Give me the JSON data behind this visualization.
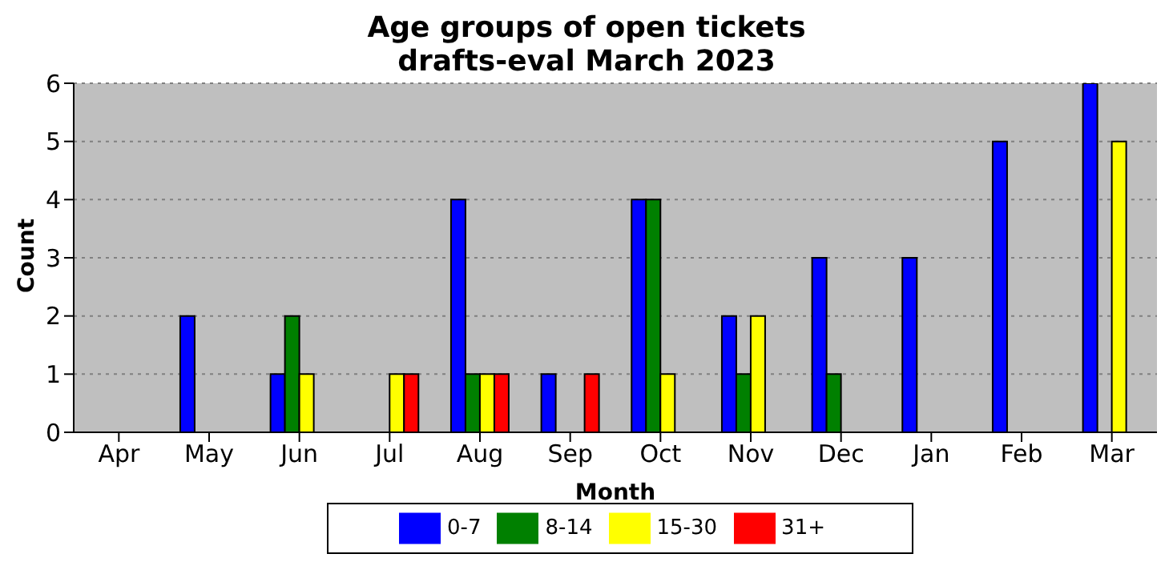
{
  "chart_data": {
    "type": "bar",
    "title": "Age groups of open tickets\ndrafts-eval March 2023",
    "xlabel": "Month",
    "ylabel": "Count",
    "categories": [
      "Apr",
      "May",
      "Jun",
      "Jul",
      "Aug",
      "Sep",
      "Oct",
      "Nov",
      "Dec",
      "Jan",
      "Feb",
      "Mar"
    ],
    "series": [
      {
        "name": "0-7",
        "color": "#0000ff",
        "values": [
          0,
          2,
          1,
          0,
          4,
          1,
          4,
          2,
          3,
          3,
          5,
          6
        ]
      },
      {
        "name": "8-14",
        "color": "#008000",
        "values": [
          0,
          0,
          2,
          0,
          1,
          0,
          4,
          1,
          1,
          0,
          0,
          0
        ]
      },
      {
        "name": "15-30",
        "color": "#ffff00",
        "values": [
          0,
          0,
          1,
          1,
          1,
          0,
          1,
          2,
          0,
          0,
          0,
          5
        ]
      },
      {
        "name": "31+",
        "color": "#ff0000",
        "values": [
          0,
          0,
          0,
          1,
          1,
          1,
          0,
          0,
          0,
          0,
          0,
          0
        ]
      }
    ],
    "ylim": [
      0,
      6
    ],
    "yticks": [
      0,
      1,
      2,
      3,
      4,
      5,
      6
    ],
    "grid": "y",
    "legend": "bottom"
  }
}
